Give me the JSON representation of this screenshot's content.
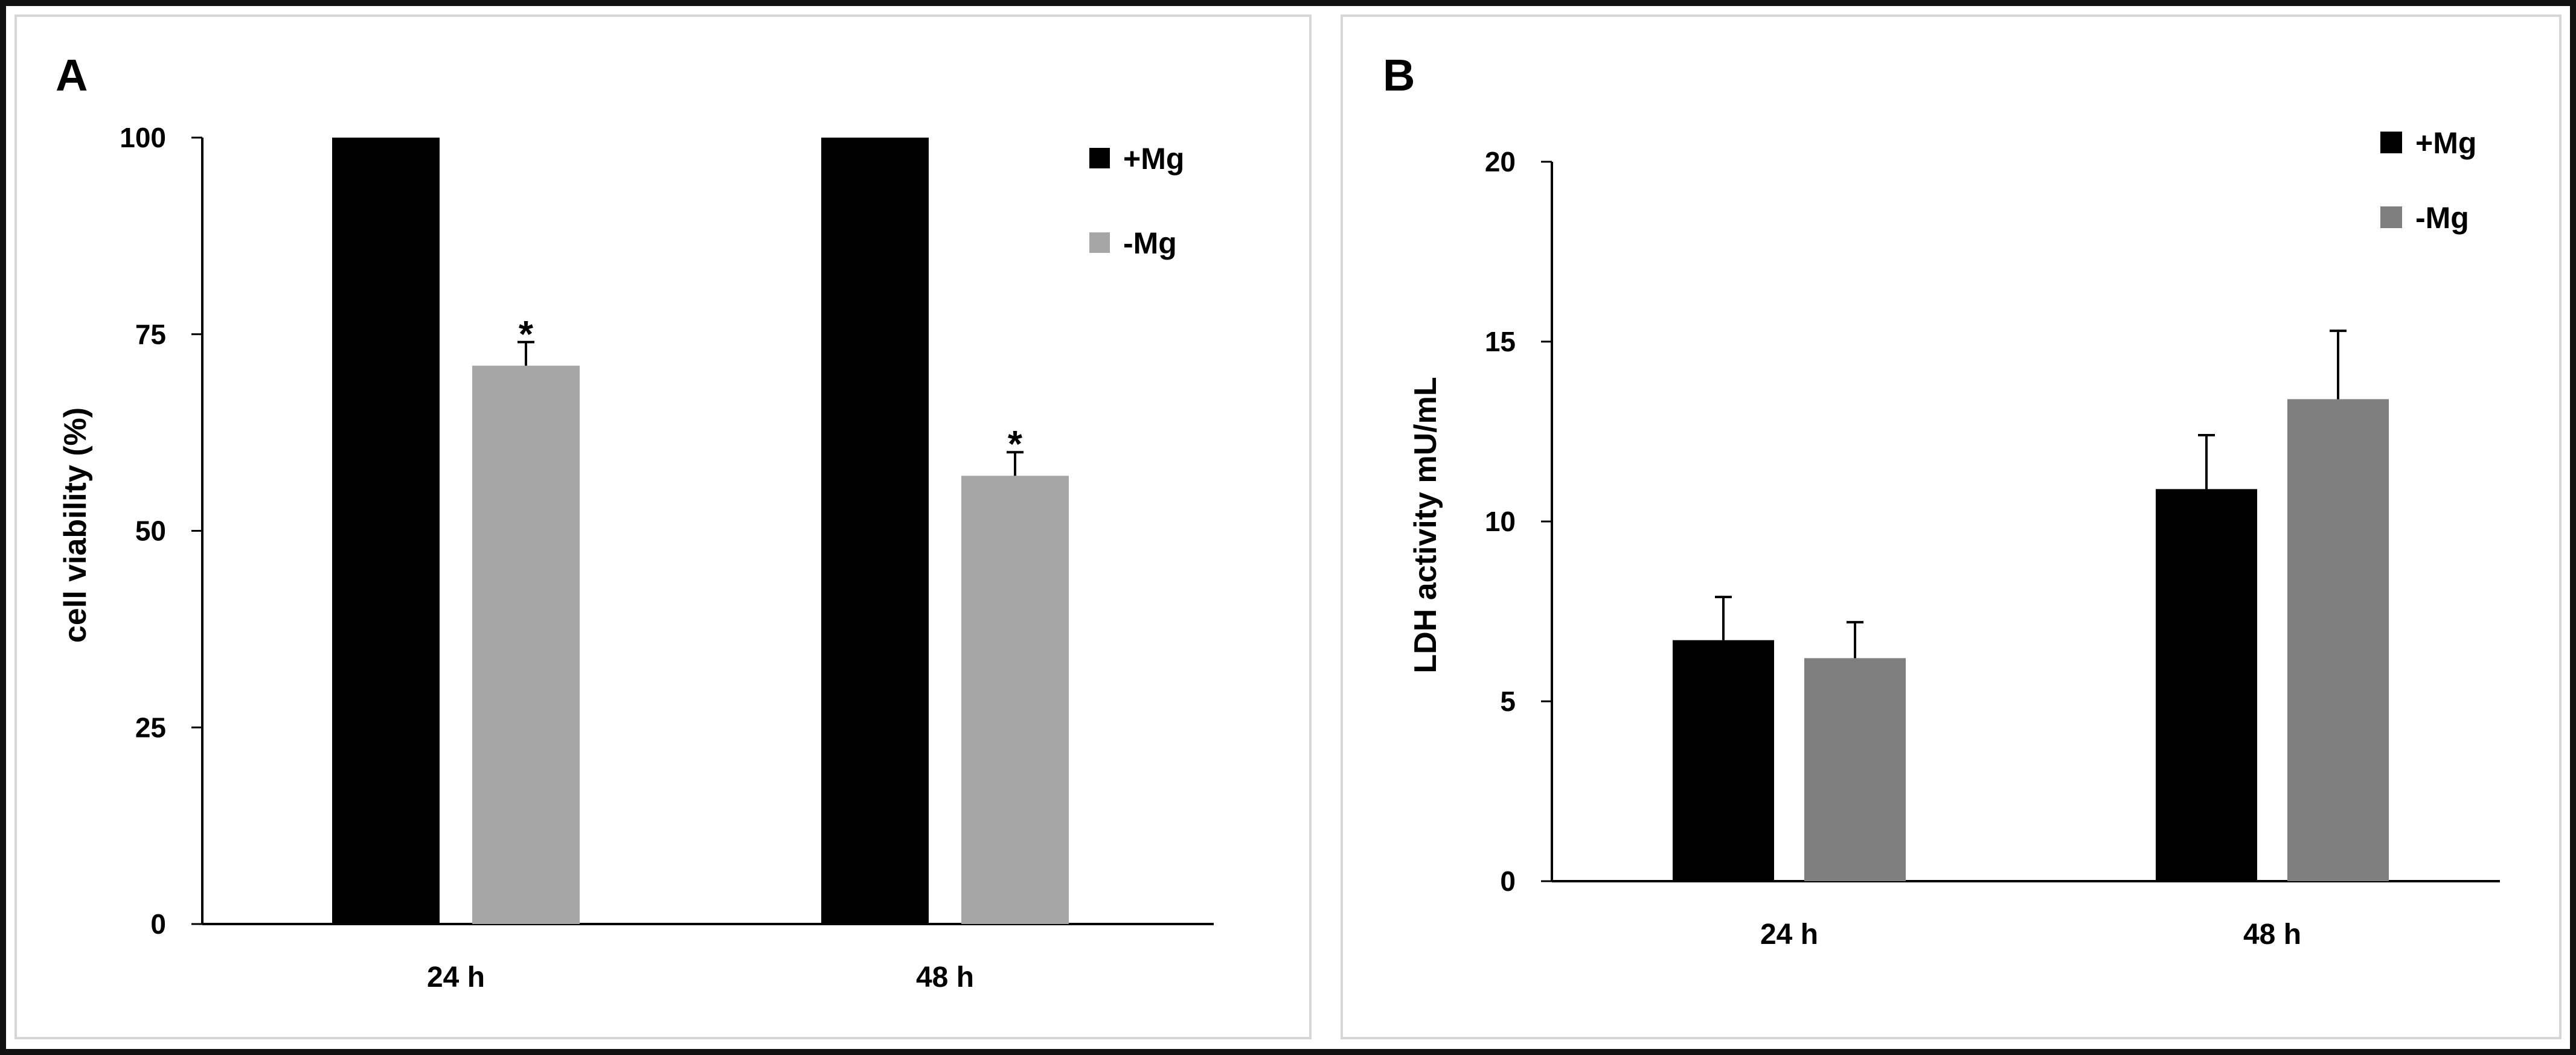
{
  "chart_data": [
    {
      "type": "bar",
      "panel_label": "A",
      "title": "",
      "xlabel": "",
      "ylabel": "cell viability (%)",
      "categories": [
        "24 h",
        "48 h"
      ],
      "ylim": [
        0,
        100
      ],
      "yticks": [
        0,
        25,
        50,
        75,
        100
      ],
      "grid": false,
      "legend_position": "top-right",
      "series": [
        {
          "name": "+Mg",
          "color": "#000000",
          "values": [
            100,
            100
          ],
          "errors": [
            0,
            0
          ],
          "annotations": [
            "",
            ""
          ]
        },
        {
          "name": "-Mg",
          "color": "#a6a6a6",
          "values": [
            71,
            57
          ],
          "errors": [
            3,
            3
          ],
          "annotations": [
            "*",
            "*"
          ]
        }
      ]
    },
    {
      "type": "bar",
      "panel_label": "B",
      "title": "",
      "xlabel": "",
      "ylabel": "LDH activity mU/mL",
      "categories": [
        "24 h",
        "48 h"
      ],
      "ylim": [
        0,
        20
      ],
      "yticks": [
        0,
        5,
        10,
        15,
        20
      ],
      "grid": false,
      "legend_position": "top-right",
      "series": [
        {
          "name": "+Mg",
          "color": "#000000",
          "values": [
            6.7,
            10.9
          ],
          "errors": [
            1.2,
            1.5
          ],
          "annotations": [
            "",
            ""
          ]
        },
        {
          "name": "-Mg",
          "color": "#7f7f7f",
          "values": [
            6.2,
            13.4
          ],
          "errors": [
            1.0,
            1.9
          ],
          "annotations": [
            "",
            ""
          ]
        }
      ]
    }
  ]
}
